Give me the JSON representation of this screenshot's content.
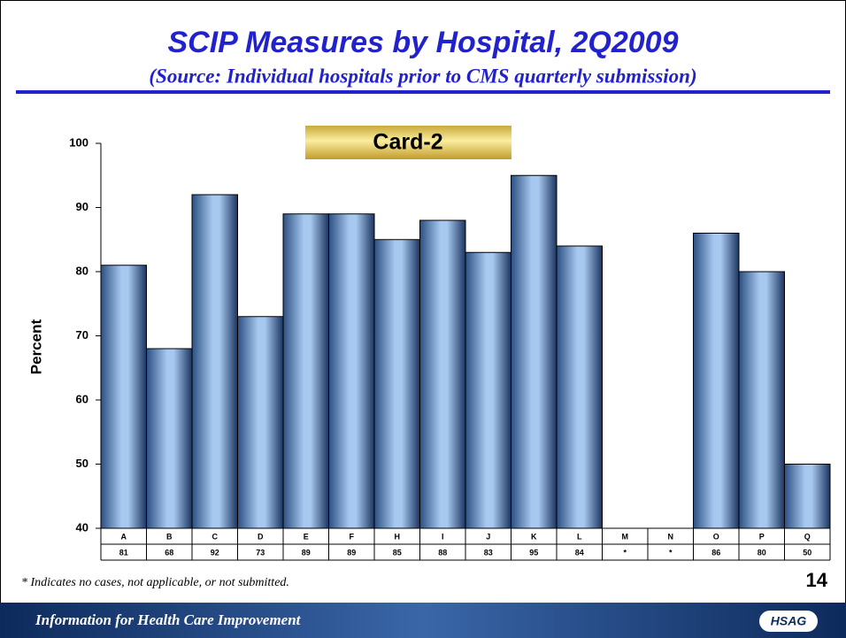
{
  "chart_data": {
    "type": "bar",
    "title": "SCIP Measures by Hospital, 2Q2009",
    "subtitle": "(Source: Individual hospitals prior to CMS quarterly submission)",
    "chart_label": "Card-2",
    "y_label": "Percent",
    "categories": [
      "A",
      "B",
      "C",
      "D",
      "E",
      "F",
      "H",
      "I",
      "J",
      "K",
      "L",
      "M",
      "N",
      "O",
      "P",
      "Q"
    ],
    "values": [
      81,
      68,
      92,
      73,
      89,
      89,
      85,
      88,
      83,
      95,
      84,
      null,
      null,
      86,
      80,
      50
    ],
    "value_labels": [
      "81",
      "68",
      "92",
      "73",
      "89",
      "89",
      "85",
      "88",
      "83",
      "95",
      "84",
      "*",
      "*",
      "86",
      "80",
      "50"
    ],
    "color": "#a7c8ef",
    "ylim": [
      40,
      100
    ],
    "yticks": [
      40,
      50,
      60,
      70,
      80,
      90,
      100
    ]
  },
  "footnote": "* Indicates no cases, not applicable, or not submitted.",
  "page_number": "14",
  "footer_text": "Information for Health Care Improvement",
  "logo": "HSAG"
}
